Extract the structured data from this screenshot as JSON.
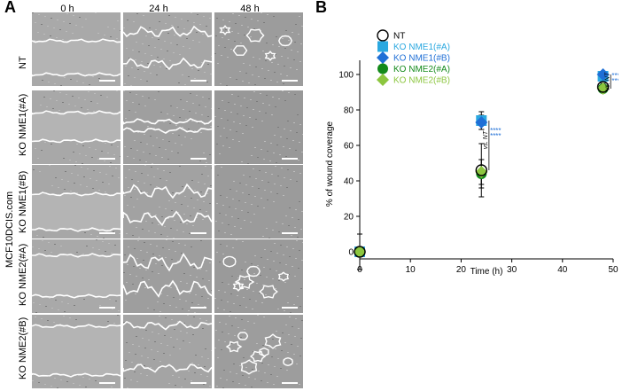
{
  "panel_a": {
    "letter": "A",
    "column_headers": [
      "0 h",
      "24 h",
      "48 h"
    ],
    "side_label": "MCF10DCIS.com",
    "row_labels": [
      "NT",
      "KO NME1(#A)",
      "KO NME1(#B)",
      "KO NME2(#A)",
      "KO NME2(#B)"
    ]
  },
  "panel_b": {
    "letter": "B"
  },
  "chart_data": {
    "type": "scatter",
    "xlabel": "Time (h)",
    "ylabel": "% of wound coverage",
    "xlim": [
      0,
      50
    ],
    "ylim": [
      -4,
      108
    ],
    "xticks": [
      0,
      10,
      20,
      30,
      40,
      50
    ],
    "yticks": [
      0,
      20,
      40,
      60,
      80,
      100
    ],
    "legend_position": "top-left",
    "series": [
      {
        "name": "NT",
        "marker": "circle-open",
        "color": "#000000",
        "x": [
          0,
          24,
          48
        ],
        "y": [
          0,
          46,
          93
        ],
        "err": [
          10,
          15,
          2
        ]
      },
      {
        "name": "KO NME1(#A)",
        "marker": "square",
        "color": "#2aa8e0",
        "x": [
          0,
          24,
          48
        ],
        "y": [
          0,
          74,
          99
        ],
        "err": [
          0,
          5,
          1.5
        ]
      },
      {
        "name": "KO NME1(#B)",
        "marker": "diamond",
        "color": "#1f6fd6",
        "x": [
          0,
          24,
          48
        ],
        "y": [
          0,
          73,
          100
        ],
        "err": [
          0,
          4,
          1.5
        ]
      },
      {
        "name": "KO NME2(#A)",
        "marker": "circle",
        "color": "#138a1a",
        "x": [
          0,
          24,
          48
        ],
        "y": [
          0,
          44,
          92
        ],
        "err": [
          0,
          8,
          1.5
        ]
      },
      {
        "name": "KO NME2(#B)",
        "marker": "diamond",
        "color": "#8cc63f",
        "x": [
          0,
          24,
          48
        ],
        "y": [
          0,
          45,
          92
        ],
        "err": [
          0,
          7,
          1.5
        ]
      }
    ],
    "annotations": [
      {
        "text": "vs. NT",
        "x": 25.2,
        "y": 63
      },
      {
        "text": "****",
        "x": 26.8,
        "y": 67
      },
      {
        "text": "****",
        "x": 26.8,
        "y": 64
      },
      {
        "text": "vs. NT",
        "x": 49.2,
        "y": 96
      },
      {
        "text": "****",
        "x": 50.8,
        "y": 98
      },
      {
        "text": "****",
        "x": 50.8,
        "y": 95
      }
    ]
  }
}
